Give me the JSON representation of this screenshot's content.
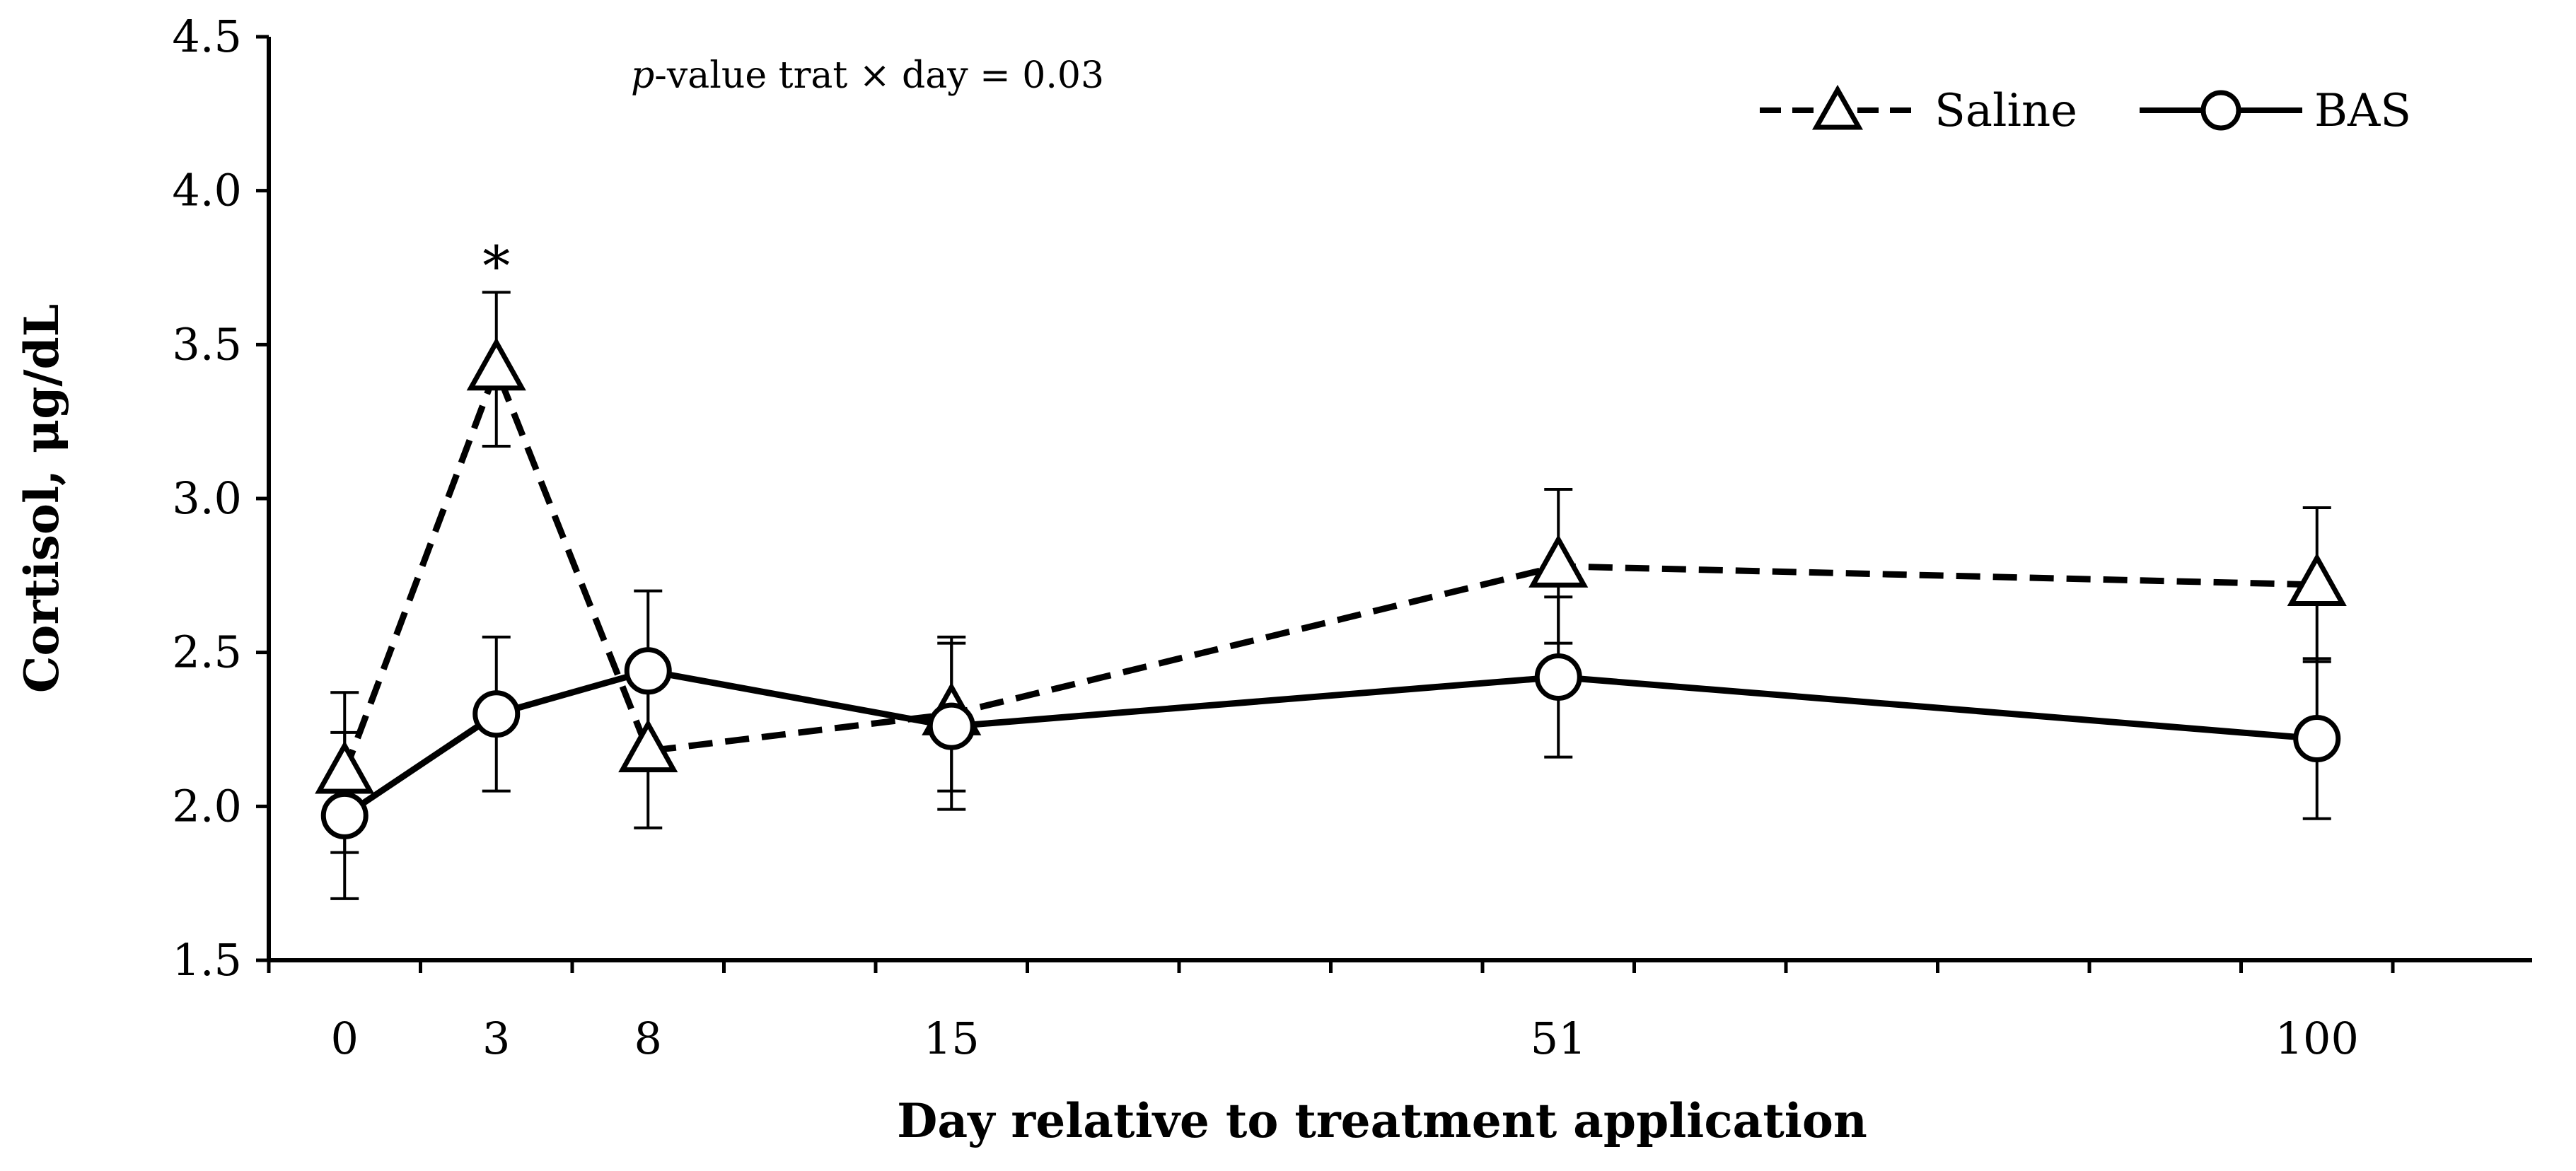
{
  "chart_data": {
    "type": "line",
    "title": "",
    "xlabel": "Day relative to treatment application",
    "ylabel": "Cortisol, μg/dL",
    "ylim": [
      1.5,
      4.5
    ],
    "yticks": [
      "1.5",
      "2.0",
      "2.5",
      "3.0",
      "3.5",
      "4.0",
      "4.5"
    ],
    "x": [
      0,
      3,
      8,
      15,
      51,
      100
    ],
    "xtick_labels": [
      "0",
      "3",
      "8",
      "15",
      "51",
      "100"
    ],
    "grid": false,
    "legend_position": "top-right",
    "annotation": {
      "p_italic": "p",
      "text": "-value trat × day = 0.03"
    },
    "significance": {
      "label": "*",
      "day": 3
    },
    "series": [
      {
        "name": "Saline",
        "line": "dashed",
        "marker": "triangle",
        "values": [
          2.11,
          3.42,
          2.18,
          2.3,
          2.78,
          2.72
        ],
        "errors": [
          0.26,
          0.25,
          0.25,
          0.25,
          0.25,
          0.25
        ]
      },
      {
        "name": "BAS",
        "line": "solid",
        "marker": "circle",
        "values": [
          1.97,
          2.3,
          2.44,
          2.26,
          2.42,
          2.22
        ],
        "errors": [
          0.27,
          0.25,
          0.26,
          0.27,
          0.26,
          0.26
        ]
      }
    ]
  }
}
